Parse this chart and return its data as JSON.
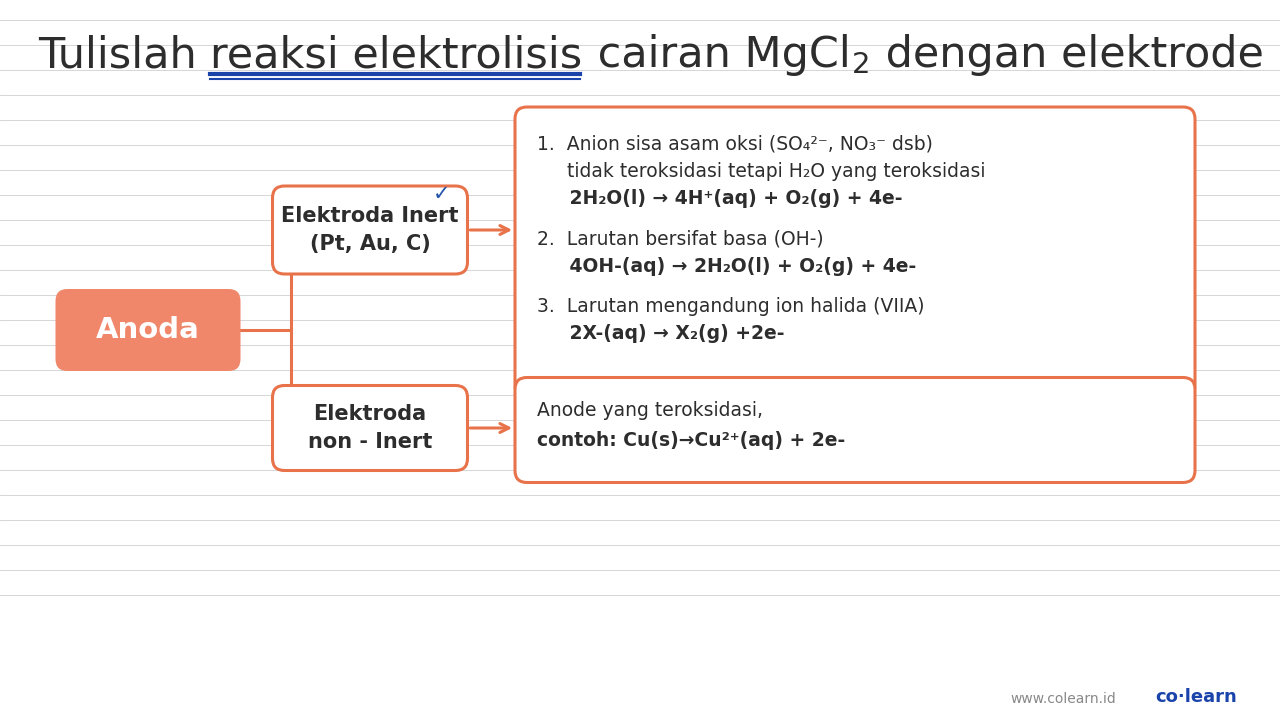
{
  "title_color": "#2d2d2d",
  "bg_color": "#ffffff",
  "orange_fill": "#f0876a",
  "orange_border": "#e8734a",
  "box_border": "#e8734a",
  "box_fill": "#ffffff",
  "anoda_label": "Anoda",
  "inert_label_line1": "Elektroda Inert",
  "inert_label_line2": "(Pt, Au, C)",
  "noninert_label_line1": "Elektroda",
  "noninert_label_line2": "non - Inert",
  "checkmark": "✓",
  "checkmark_color": "#2255aa",
  "rule1_line1": "1.  Anion sisa asam oksi (SO₄²⁻, NO₃⁻ dsb)",
  "rule1_line2": "     tidak teroksidasi tetapi H₂O yang teroksidasi",
  "rule1_line3": "     2H₂O(l) → 4H⁺(aq) + O₂(g) + 4e-",
  "rule2_line1": "2.  Larutan bersifat basa (OH-)",
  "rule2_line2": "     4OH-(aq) → 2H₂O(l) + O₂(g) + 4e-",
  "rule3_line1": "3.  Larutan mengandung ion halida (VIIA)",
  "rule3_line2": "     2X-(aq) → X₂(g) +2e-",
  "noninert_content_line1": "Anode yang teroksidasi,",
  "noninert_content_line2": "contoh: Cu(s)→Cu²⁺(aq) + 2e-",
  "footer_left": "www.colearn.id",
  "footer_right": "co·learn",
  "line_color": "#d0d0d0",
  "text_dark": "#2d2d2d",
  "underline_color": "#1a44aa"
}
